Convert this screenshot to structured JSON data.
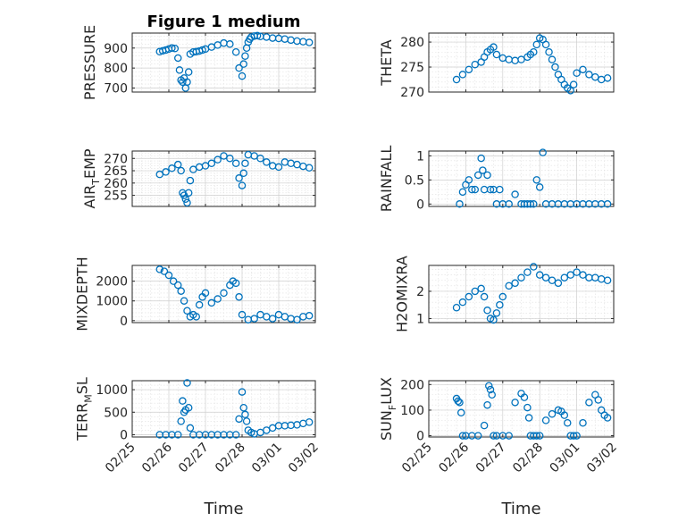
{
  "figure": {
    "title": "Figure 1 medium"
  },
  "colors": {
    "marker": "#0072BD",
    "axis": "#262626",
    "grid": "#cfcfcf"
  },
  "chart_data": [
    {
      "type": "scatter",
      "panel": "pressure",
      "title": "Figure 1 medium",
      "ylabel": "PRESSURE",
      "xlabel": "",
      "ylim": [
        680,
        975
      ],
      "yticks": [
        700,
        800,
        900
      ],
      "grid": true,
      "xlim": [
        "2015-02-25",
        "2015-03-02"
      ],
      "xticks": [
        "02/25",
        "02/26",
        "02/27",
        "02/28",
        "03/01",
        "03/02"
      ],
      "show_xticklabels": false,
      "x": [
        "2015-02-25 18:00",
        "2015-02-25 20:00",
        "2015-02-25 22:00",
        "2015-02-26 00:00",
        "2015-02-26 02:00",
        "2015-02-26 04:00",
        "2015-02-26 06:00",
        "2015-02-26 07:00",
        "2015-02-26 08:00",
        "2015-02-26 09:00",
        "2015-02-26 10:00",
        "2015-02-26 11:00",
        "2015-02-26 12:00",
        "2015-02-26 13:00",
        "2015-02-26 14:00",
        "2015-02-26 16:00",
        "2015-02-26 18:00",
        "2015-02-26 20:00",
        "2015-02-26 22:00",
        "2015-02-27 00:00",
        "2015-02-27 04:00",
        "2015-02-27 08:00",
        "2015-02-27 12:00",
        "2015-02-27 16:00",
        "2015-02-27 20:00",
        "2015-02-27 22:00",
        "2015-02-28 00:00",
        "2015-02-28 01:00",
        "2015-02-28 02:00",
        "2015-02-28 03:00",
        "2015-02-28 04:00",
        "2015-02-28 05:00",
        "2015-02-28 06:00",
        "2015-02-28 08:00",
        "2015-02-28 10:00",
        "2015-02-28 12:00",
        "2015-02-28 16:00",
        "2015-02-28 20:00",
        "2015-03-01 00:00",
        "2015-03-01 04:00",
        "2015-03-01 08:00",
        "2015-03-01 12:00",
        "2015-03-01 16:00",
        "2015-03-01 20:00"
      ],
      "y": [
        882,
        886,
        890,
        895,
        900,
        898,
        850,
        790,
        740,
        730,
        750,
        700,
        730,
        780,
        870,
        880,
        882,
        885,
        890,
        895,
        905,
        915,
        925,
        920,
        880,
        800,
        760,
        820,
        860,
        900,
        930,
        945,
        955,
        960,
        962,
        958,
        955,
        950,
        948,
        945,
        940,
        935,
        932,
        928
      ]
    },
    {
      "type": "scatter",
      "panel": "theta",
      "title": "",
      "ylabel": "THETA",
      "xlabel": "",
      "ylim": [
        270,
        281.8
      ],
      "yticks": [
        270,
        275,
        280
      ],
      "grid": true,
      "xlim": [
        "2015-02-25",
        "2015-03-02"
      ],
      "xticks": [
        "02/25",
        "02/26",
        "02/27",
        "02/28",
        "03/01",
        "03/02"
      ],
      "show_xticklabels": false,
      "x": [
        "2015-02-25 18:00",
        "2015-02-25 22:00",
        "2015-02-26 02:00",
        "2015-02-26 06:00",
        "2015-02-26 10:00",
        "2015-02-26 12:00",
        "2015-02-26 14:00",
        "2015-02-26 16:00",
        "2015-02-26 18:00",
        "2015-02-26 20:00",
        "2015-02-27 00:00",
        "2015-02-27 04:00",
        "2015-02-27 08:00",
        "2015-02-27 12:00",
        "2015-02-27 16:00",
        "2015-02-27 18:00",
        "2015-02-27 20:00",
        "2015-02-27 22:00",
        "2015-02-28 00:00",
        "2015-02-28 02:00",
        "2015-02-28 04:00",
        "2015-02-28 06:00",
        "2015-02-28 08:00",
        "2015-02-28 10:00",
        "2015-02-28 12:00",
        "2015-02-28 14:00",
        "2015-02-28 16:00",
        "2015-02-28 18:00",
        "2015-02-28 20:00",
        "2015-02-28 22:00",
        "2015-03-01 00:00",
        "2015-03-01 04:00",
        "2015-03-01 08:00",
        "2015-03-01 12:00",
        "2015-03-01 16:00",
        "2015-03-01 20:00"
      ],
      "y": [
        272.5,
        273.5,
        274.5,
        275.5,
        276.0,
        277.0,
        278.0,
        278.5,
        279.0,
        277.5,
        276.8,
        276.5,
        276.3,
        276.5,
        277.0,
        277.5,
        278.0,
        279.5,
        280.8,
        280.5,
        279.5,
        278.0,
        276.5,
        275.0,
        273.5,
        272.5,
        271.5,
        270.8,
        270.3,
        271.5,
        273.8,
        274.5,
        273.5,
        273.0,
        272.5,
        272.8
      ]
    },
    {
      "type": "scatter",
      "panel": "air_temp",
      "title": "",
      "ylabel": "AIR_TEMP",
      "ylabel_display": [
        "AIR",
        "T",
        "EMP"
      ],
      "xlabel": "",
      "ylim": [
        250.5,
        273
      ],
      "yticks": [
        255,
        260,
        265,
        270
      ],
      "grid": true,
      "xlim": [
        "2015-02-25",
        "2015-03-02"
      ],
      "xticks": [
        "02/25",
        "02/26",
        "02/27",
        "02/28",
        "03/01",
        "03/02"
      ],
      "show_xticklabels": false,
      "x": [
        "2015-02-25 18:00",
        "2015-02-25 22:00",
        "2015-02-26 02:00",
        "2015-02-26 06:00",
        "2015-02-26 08:00",
        "2015-02-26 09:00",
        "2015-02-26 10:00",
        "2015-02-26 11:00",
        "2015-02-26 12:00",
        "2015-02-26 13:00",
        "2015-02-26 14:00",
        "2015-02-26 16:00",
        "2015-02-26 20:00",
        "2015-02-27 00:00",
        "2015-02-27 04:00",
        "2015-02-27 08:00",
        "2015-02-27 12:00",
        "2015-02-27 16:00",
        "2015-02-27 20:00",
        "2015-02-27 22:00",
        "2015-02-28 00:00",
        "2015-02-28 01:00",
        "2015-02-28 02:00",
        "2015-02-28 04:00",
        "2015-02-28 08:00",
        "2015-02-28 12:00",
        "2015-02-28 16:00",
        "2015-02-28 20:00",
        "2015-03-01 00:00",
        "2015-03-01 04:00",
        "2015-03-01 08:00",
        "2015-03-01 12:00",
        "2015-03-01 16:00",
        "2015-03-01 20:00"
      ],
      "y": [
        263.5,
        264.5,
        266.0,
        267.5,
        265.0,
        256.0,
        255.0,
        253.5,
        252.0,
        256.0,
        261.0,
        265.5,
        266.5,
        267.0,
        268.0,
        269.5,
        271.0,
        270.0,
        268.0,
        262.0,
        259.0,
        264.0,
        268.0,
        271.5,
        271.0,
        270.0,
        268.5,
        267.0,
        266.5,
        268.5,
        268.0,
        267.5,
        266.8,
        266.2
      ]
    },
    {
      "type": "scatter",
      "panel": "rainfall",
      "title": "",
      "ylabel": "RAINFALL",
      "xlabel": "",
      "ylim": [
        -0.05,
        1.1
      ],
      "yticks": [
        0,
        0.5,
        1
      ],
      "grid": true,
      "xlim": [
        "2015-02-25",
        "2015-03-02"
      ],
      "xticks": [
        "02/25",
        "02/26",
        "02/27",
        "02/28",
        "03/01",
        "03/02"
      ],
      "show_xticklabels": false,
      "x": [
        "2015-02-25 20:00",
        "2015-02-25 22:00",
        "2015-02-26 00:00",
        "2015-02-26 02:00",
        "2015-02-26 04:00",
        "2015-02-26 06:00",
        "2015-02-26 08:00",
        "2015-02-26 10:00",
        "2015-02-26 11:00",
        "2015-02-26 12:00",
        "2015-02-26 14:00",
        "2015-02-26 16:00",
        "2015-02-26 18:00",
        "2015-02-26 20:00",
        "2015-02-26 22:00",
        "2015-02-27 00:00",
        "2015-02-27 04:00",
        "2015-02-27 08:00",
        "2015-02-27 12:00",
        "2015-02-27 14:00",
        "2015-02-27 16:00",
        "2015-02-27 18:00",
        "2015-02-27 20:00",
        "2015-02-27 22:00",
        "2015-02-28 00:00",
        "2015-02-28 02:00",
        "2015-02-28 04:00",
        "2015-02-28 08:00",
        "2015-02-28 12:00",
        "2015-02-28 16:00",
        "2015-02-28 20:00",
        "2015-03-01 00:00",
        "2015-03-01 04:00",
        "2015-03-01 08:00",
        "2015-03-01 12:00",
        "2015-03-01 16:00",
        "2015-03-01 20:00"
      ],
      "y": [
        0.0,
        0.25,
        0.4,
        0.5,
        0.3,
        0.3,
        0.6,
        0.95,
        0.7,
        0.3,
        0.6,
        0.3,
        0.3,
        0.0,
        0.3,
        0.0,
        0.0,
        0.2,
        0.0,
        0.0,
        0.0,
        0.0,
        0.0,
        0.5,
        0.35,
        1.07,
        0.0,
        0.0,
        0.0,
        0.0,
        0.0,
        0.0,
        0.0,
        0.0,
        0.0,
        0.0,
        0.0
      ]
    },
    {
      "type": "scatter",
      "panel": "mixdepth",
      "title": "",
      "ylabel": "MIXDEPTH",
      "xlabel": "",
      "ylim": [
        -100,
        2800
      ],
      "yticks": [
        0,
        1000,
        2000
      ],
      "grid": true,
      "xlim": [
        "2015-02-25",
        "2015-03-02"
      ],
      "xticks": [
        "02/25",
        "02/26",
        "02/27",
        "02/28",
        "03/01",
        "03/02"
      ],
      "show_xticklabels": false,
      "x": [
        "2015-02-25 18:00",
        "2015-02-25 21:00",
        "2015-02-26 00:00",
        "2015-02-26 03:00",
        "2015-02-26 06:00",
        "2015-02-26 08:00",
        "2015-02-26 10:00",
        "2015-02-26 12:00",
        "2015-02-26 14:00",
        "2015-02-26 16:00",
        "2015-02-26 18:00",
        "2015-02-26 20:00",
        "2015-02-26 22:00",
        "2015-02-27 00:00",
        "2015-02-27 04:00",
        "2015-02-27 08:00",
        "2015-02-27 12:00",
        "2015-02-27 16:00",
        "2015-02-27 18:00",
        "2015-02-27 20:00",
        "2015-02-27 22:00",
        "2015-02-28 00:00",
        "2015-02-28 04:00",
        "2015-02-28 08:00",
        "2015-02-28 12:00",
        "2015-02-28 16:00",
        "2015-02-28 20:00",
        "2015-03-01 00:00",
        "2015-03-01 04:00",
        "2015-03-01 08:00",
        "2015-03-01 12:00",
        "2015-03-01 16:00",
        "2015-03-01 20:00"
      ],
      "y": [
        2600,
        2500,
        2300,
        2000,
        1800,
        1500,
        1000,
        500,
        200,
        300,
        200,
        800,
        1200,
        1400,
        900,
        1100,
        1400,
        1800,
        2000,
        1900,
        1200,
        300,
        50,
        100,
        300,
        200,
        100,
        300,
        200,
        100,
        50,
        200,
        250
      ]
    },
    {
      "type": "scatter",
      "panel": "h2omixra",
      "title": "",
      "ylabel": "H2OMIXRA",
      "xlabel": "",
      "ylim": [
        0.85,
        2.95
      ],
      "yticks": [
        1,
        2
      ],
      "grid": true,
      "xlim": [
        "2015-02-25",
        "2015-03-02"
      ],
      "xticks": [
        "02/25",
        "02/26",
        "02/27",
        "02/28",
        "03/01",
        "03/02"
      ],
      "show_xticklabels": false,
      "x": [
        "2015-02-25 18:00",
        "2015-02-25 22:00",
        "2015-02-26 02:00",
        "2015-02-26 06:00",
        "2015-02-26 10:00",
        "2015-02-26 12:00",
        "2015-02-26 14:00",
        "2015-02-26 16:00",
        "2015-02-26 18:00",
        "2015-02-26 20:00",
        "2015-02-26 22:00",
        "2015-02-27 00:00",
        "2015-02-27 04:00",
        "2015-02-27 08:00",
        "2015-02-27 12:00",
        "2015-02-27 16:00",
        "2015-02-27 20:00",
        "2015-02-28 00:00",
        "2015-02-28 04:00",
        "2015-02-28 08:00",
        "2015-02-28 12:00",
        "2015-02-28 16:00",
        "2015-02-28 20:00",
        "2015-03-01 00:00",
        "2015-03-01 04:00",
        "2015-03-01 08:00",
        "2015-03-01 12:00",
        "2015-03-01 16:00",
        "2015-03-01 20:00"
      ],
      "y": [
        1.4,
        1.6,
        1.8,
        2.0,
        2.1,
        1.8,
        1.3,
        1.0,
        0.95,
        1.2,
        1.5,
        1.8,
        2.2,
        2.3,
        2.5,
        2.7,
        2.9,
        2.6,
        2.5,
        2.4,
        2.3,
        2.5,
        2.6,
        2.7,
        2.6,
        2.5,
        2.5,
        2.45,
        2.4
      ]
    },
    {
      "type": "scatter",
      "panel": "terrmsl",
      "title": "",
      "ylabel": "TERR_MSL",
      "ylabel_display": [
        "TERR",
        "M",
        "SL"
      ],
      "xlabel": "Time",
      "ylim": [
        -50,
        1200
      ],
      "yticks": [
        0,
        500,
        1000
      ],
      "grid": true,
      "xlim": [
        "2015-02-25",
        "2015-03-02"
      ],
      "xticks": [
        "02/25",
        "02/26",
        "02/27",
        "02/28",
        "03/01",
        "03/02"
      ],
      "show_xticklabels": true,
      "x": [
        "2015-02-25 18:00",
        "2015-02-25 22:00",
        "2015-02-26 02:00",
        "2015-02-26 06:00",
        "2015-02-26 08:00",
        "2015-02-26 09:00",
        "2015-02-26 10:00",
        "2015-02-26 11:00",
        "2015-02-26 12:00",
        "2015-02-26 13:00",
        "2015-02-26 14:00",
        "2015-02-26 16:00",
        "2015-02-26 20:00",
        "2015-02-27 00:00",
        "2015-02-27 04:00",
        "2015-02-27 08:00",
        "2015-02-27 12:00",
        "2015-02-27 16:00",
        "2015-02-27 20:00",
        "2015-02-27 22:00",
        "2015-02-28 00:00",
        "2015-02-28 01:00",
        "2015-02-28 02:00",
        "2015-02-28 03:00",
        "2015-02-28 04:00",
        "2015-02-28 06:00",
        "2015-02-28 08:00",
        "2015-02-28 12:00",
        "2015-02-28 16:00",
        "2015-02-28 20:00",
        "2015-03-01 00:00",
        "2015-03-01 04:00",
        "2015-03-01 08:00",
        "2015-03-01 12:00",
        "2015-03-01 16:00",
        "2015-03-01 20:00"
      ],
      "y": [
        0,
        0,
        0,
        0,
        300,
        750,
        500,
        550,
        1150,
        600,
        150,
        0,
        0,
        0,
        0,
        0,
        0,
        0,
        0,
        350,
        950,
        600,
        450,
        300,
        100,
        50,
        20,
        50,
        100,
        150,
        200,
        200,
        210,
        220,
        250,
        280
      ]
    },
    {
      "type": "scatter",
      "panel": "sunflux",
      "title": "",
      "ylabel": "SUN_FLUX",
      "ylabel_display": [
        "SUN",
        "F",
        "LUX"
      ],
      "xlabel": "Time",
      "ylim": [
        -5,
        215
      ],
      "yticks": [
        0,
        100,
        200
      ],
      "grid": true,
      "xlim": [
        "2015-02-25",
        "2015-03-02"
      ],
      "xticks": [
        "02/25",
        "02/26",
        "02/27",
        "02/28",
        "03/01",
        "03/02"
      ],
      "show_xticklabels": true,
      "x": [
        "2015-02-25 18:00",
        "2015-02-25 19:00",
        "2015-02-25 20:00",
        "2015-02-25 21:00",
        "2015-02-25 22:00",
        "2015-02-26 00:00",
        "2015-02-26 04:00",
        "2015-02-26 08:00",
        "2015-02-26 12:00",
        "2015-02-26 14:00",
        "2015-02-26 15:00",
        "2015-02-26 16:00",
        "2015-02-26 17:00",
        "2015-02-26 18:00",
        "2015-02-26 20:00",
        "2015-02-27 00:00",
        "2015-02-27 04:00",
        "2015-02-27 08:00",
        "2015-02-27 12:00",
        "2015-02-27 14:00",
        "2015-02-27 16:00",
        "2015-02-27 17:00",
        "2015-02-27 18:00",
        "2015-02-27 20:00",
        "2015-02-27 22:00",
        "2015-02-28 00:00",
        "2015-02-28 04:00",
        "2015-02-28 08:00",
        "2015-02-28 12:00",
        "2015-02-28 14:00",
        "2015-02-28 16:00",
        "2015-02-28 18:00",
        "2015-02-28 20:00",
        "2015-02-28 22:00",
        "2015-03-01 00:00",
        "2015-03-01 04:00",
        "2015-03-01 08:00",
        "2015-03-01 12:00",
        "2015-03-01 14:00",
        "2015-03-01 16:00",
        "2015-03-01 18:00",
        "2015-03-01 20:00"
      ],
      "y": [
        145,
        135,
        130,
        90,
        0,
        0,
        0,
        0,
        40,
        120,
        195,
        180,
        160,
        0,
        0,
        0,
        0,
        130,
        165,
        150,
        110,
        70,
        0,
        0,
        0,
        0,
        60,
        85,
        100,
        95,
        80,
        50,
        0,
        0,
        0,
        50,
        130,
        160,
        140,
        100,
        80,
        70
      ]
    }
  ]
}
